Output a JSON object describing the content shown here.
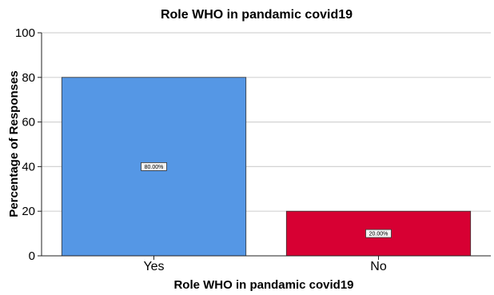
{
  "chart_data": {
    "type": "bar",
    "title": "Role WHO in pandamic covid19",
    "xlabel": "Role WHO in pandamic covid19",
    "ylabel": "Percentage of Responses",
    "categories": [
      "Yes",
      "No"
    ],
    "values": [
      80,
      20
    ],
    "data_labels": [
      "80.00%",
      "20.00%"
    ],
    "bar_colors": [
      "#5597e5",
      "#d70033"
    ],
    "ylim": [
      0,
      100
    ],
    "yticks": [
      0,
      20,
      40,
      60,
      80,
      100
    ],
    "grid": true,
    "legend": "none"
  }
}
